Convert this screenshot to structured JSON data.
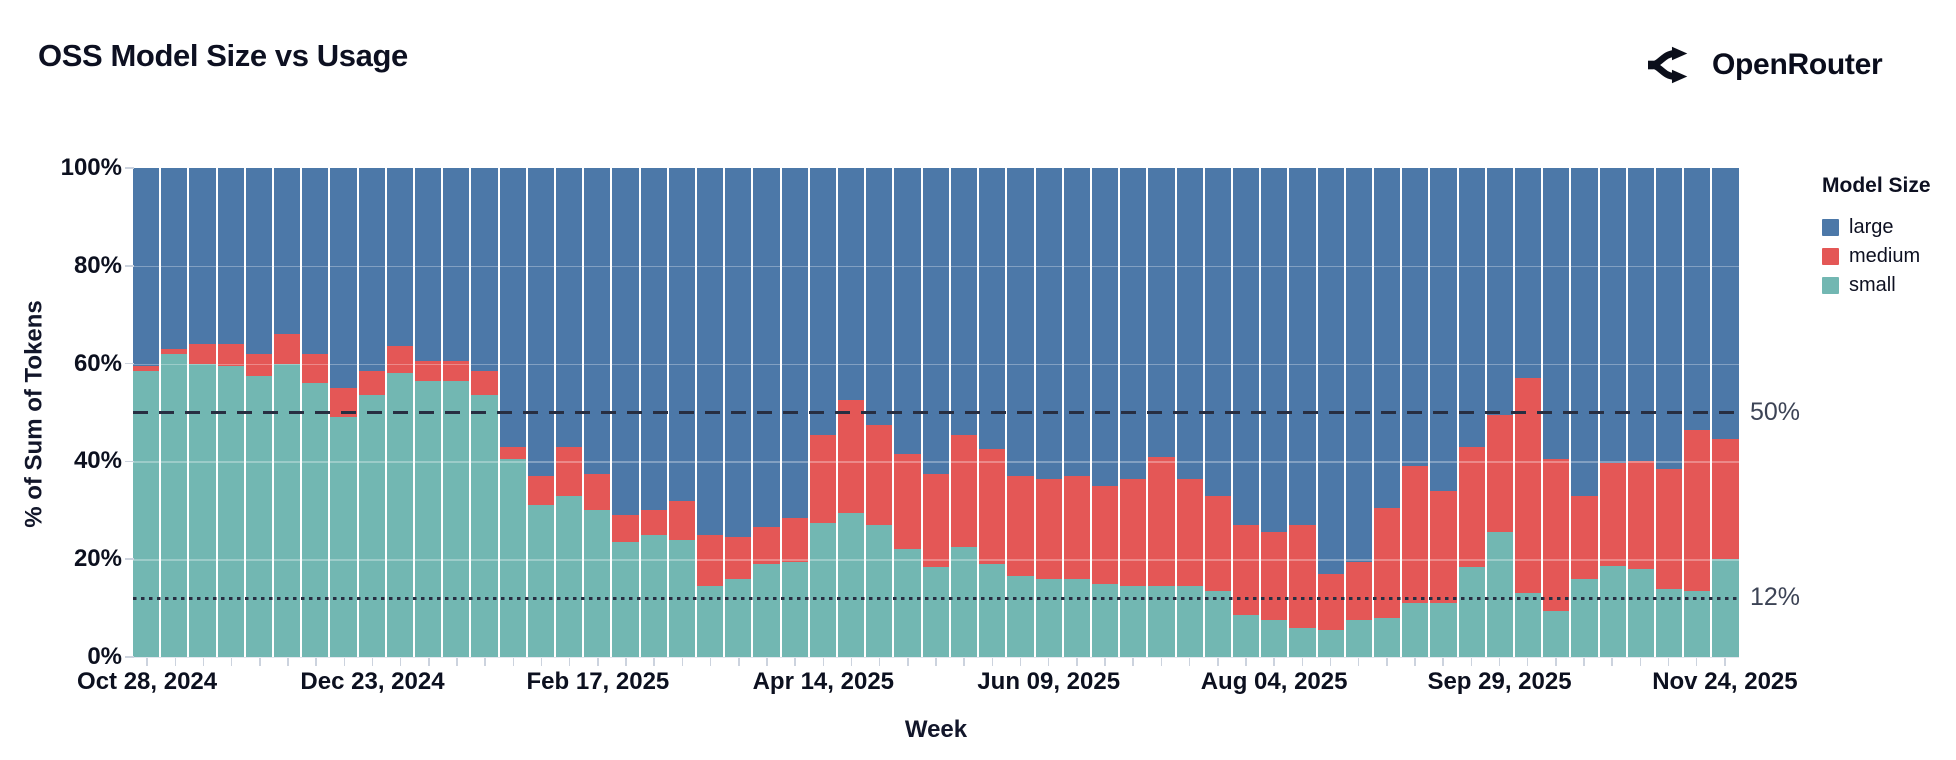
{
  "header": {
    "title": "OSS Model Size vs Usage",
    "brand": "OpenRouter"
  },
  "chart_data": {
    "type": "bar",
    "stacked": true,
    "title": "OSS Model Size vs Usage",
    "xlabel": "Week",
    "ylabel": "% of Sum of Tokens",
    "ylim": [
      0,
      100
    ],
    "y_tick_labels": [
      "100%",
      "80%",
      "60%",
      "40%",
      "20%",
      "0%"
    ],
    "grid_y": [
      20,
      40,
      60,
      80
    ],
    "legend_title": "Model Size",
    "legend_position": "right",
    "x_tick_labels": [
      "Oct 28, 2024",
      "Dec 23, 2024",
      "Feb 17, 2025",
      "Apr 14, 2025",
      "Jun 09, 2025",
      "Aug 04, 2025",
      "Sep 29, 2025",
      "Nov 24, 2025"
    ],
    "x_tick_indices": [
      0,
      8,
      16,
      24,
      32,
      40,
      48,
      56
    ],
    "categories": [
      "Oct 28, 2024",
      "Nov 04, 2024",
      "Nov 11, 2024",
      "Nov 18, 2024",
      "Nov 25, 2024",
      "Dec 02, 2024",
      "Dec 09, 2024",
      "Dec 16, 2024",
      "Dec 23, 2024",
      "Dec 30, 2024",
      "Jan 06, 2025",
      "Jan 13, 2025",
      "Jan 20, 2025",
      "Jan 27, 2025",
      "Feb 03, 2025",
      "Feb 10, 2025",
      "Feb 17, 2025",
      "Feb 24, 2025",
      "Mar 03, 2025",
      "Mar 10, 2025",
      "Mar 17, 2025",
      "Mar 24, 2025",
      "Mar 31, 2025",
      "Apr 07, 2025",
      "Apr 14, 2025",
      "Apr 21, 2025",
      "Apr 28, 2025",
      "May 05, 2025",
      "May 12, 2025",
      "May 19, 2025",
      "May 26, 2025",
      "Jun 02, 2025",
      "Jun 09, 2025",
      "Jun 16, 2025",
      "Jun 23, 2025",
      "Jun 30, 2025",
      "Jul 07, 2025",
      "Jul 14, 2025",
      "Jul 21, 2025",
      "Jul 28, 2025",
      "Aug 04, 2025",
      "Aug 11, 2025",
      "Aug 18, 2025",
      "Aug 25, 2025",
      "Sep 01, 2025",
      "Sep 08, 2025",
      "Sep 15, 2025",
      "Sep 22, 2025",
      "Sep 29, 2025",
      "Oct 06, 2025",
      "Oct 13, 2025",
      "Oct 20, 2025",
      "Oct 27, 2025",
      "Nov 03, 2025",
      "Nov 10, 2025",
      "Nov 17, 2025",
      "Nov 24, 2025"
    ],
    "series": [
      {
        "name": "large",
        "color": "#4C78A8",
        "values": [
          40.5,
          37,
          36,
          36,
          38,
          34,
          38,
          45,
          41.5,
          36.5,
          39.5,
          39.5,
          41.5,
          57,
          63,
          57,
          62.5,
          71,
          70,
          68,
          75,
          75.5,
          73.5,
          71.5,
          54.5,
          47.5,
          52.5,
          58.5,
          62.5,
          54.5,
          57.5,
          63,
          63.5,
          63,
          65,
          63.5,
          59,
          63.5,
          67,
          73,
          74.5,
          73,
          83,
          80.5,
          69.5,
          61,
          66,
          57,
          50.5,
          43,
          59.5,
          67,
          61.5,
          60,
          61.5,
          53.5,
          55.5
        ]
      },
      {
        "name": "medium",
        "color": "#E45756",
        "values": [
          1,
          1,
          4,
          4.5,
          4.5,
          6,
          6,
          6,
          5,
          5.5,
          4,
          4,
          5,
          2.5,
          6,
          10,
          7.5,
          5.5,
          5,
          8,
          10.5,
          8.5,
          7.5,
          9,
          18,
          23,
          20.5,
          19.5,
          19,
          23,
          23.5,
          20.5,
          20.5,
          21,
          20,
          22,
          26.5,
          22,
          19.5,
          18.5,
          18,
          21,
          11.5,
          12,
          22.5,
          28,
          23,
          24.5,
          24,
          44,
          31,
          17,
          21.5,
          22,
          24.5,
          33,
          24.5
        ]
      },
      {
        "name": "small",
        "color": "#72B7B2",
        "values": [
          58.5,
          62,
          60,
          59.5,
          57.5,
          60,
          56,
          49,
          53.5,
          58,
          56.5,
          56.5,
          53.5,
          40.5,
          31,
          33,
          30,
          23.5,
          25,
          24,
          14.5,
          16,
          19,
          19.5,
          27.5,
          29.5,
          27,
          22,
          18.5,
          22.5,
          19,
          16.5,
          16,
          16,
          15,
          14.5,
          14.5,
          14.5,
          13.5,
          8.5,
          7.5,
          6,
          5.5,
          7.5,
          8,
          11,
          11,
          18.5,
          25.5,
          13,
          9.5,
          16,
          19,
          18,
          14,
          13.5,
          20
        ]
      }
    ],
    "annotations": [
      {
        "label": "50%",
        "y": 50,
        "style": "dashed"
      },
      {
        "label": "12%",
        "y": 12,
        "style": "dotted"
      }
    ]
  }
}
